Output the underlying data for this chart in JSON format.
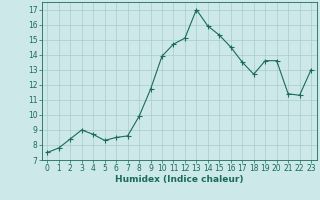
{
  "x": [
    0,
    1,
    2,
    3,
    4,
    5,
    6,
    7,
    8,
    9,
    10,
    11,
    12,
    13,
    14,
    15,
    16,
    17,
    18,
    19,
    20,
    21,
    22,
    23
  ],
  "y": [
    7.5,
    7.8,
    8.4,
    9.0,
    8.7,
    8.3,
    8.5,
    8.6,
    9.9,
    11.7,
    13.9,
    14.7,
    15.1,
    17.0,
    15.9,
    15.3,
    14.5,
    13.5,
    12.7,
    13.6,
    13.6,
    11.4,
    11.3,
    13.0
  ],
  "line_color": "#1a6b5a",
  "marker": "D",
  "marker_size": 1.8,
  "line_width": 0.8,
  "bg_color": "#cce8e8",
  "grid_color": "#aacccc",
  "xlabel": "Humidex (Indice chaleur)",
  "xlim": [
    -0.5,
    23.5
  ],
  "ylim": [
    7,
    17.5
  ],
  "yticks": [
    7,
    8,
    9,
    10,
    11,
    12,
    13,
    14,
    15,
    16,
    17
  ],
  "xticks": [
    0,
    1,
    2,
    3,
    4,
    5,
    6,
    7,
    8,
    9,
    10,
    11,
    12,
    13,
    14,
    15,
    16,
    17,
    18,
    19,
    20,
    21,
    22,
    23
  ],
  "tick_fontsize": 5.5,
  "label_fontsize": 6.5
}
